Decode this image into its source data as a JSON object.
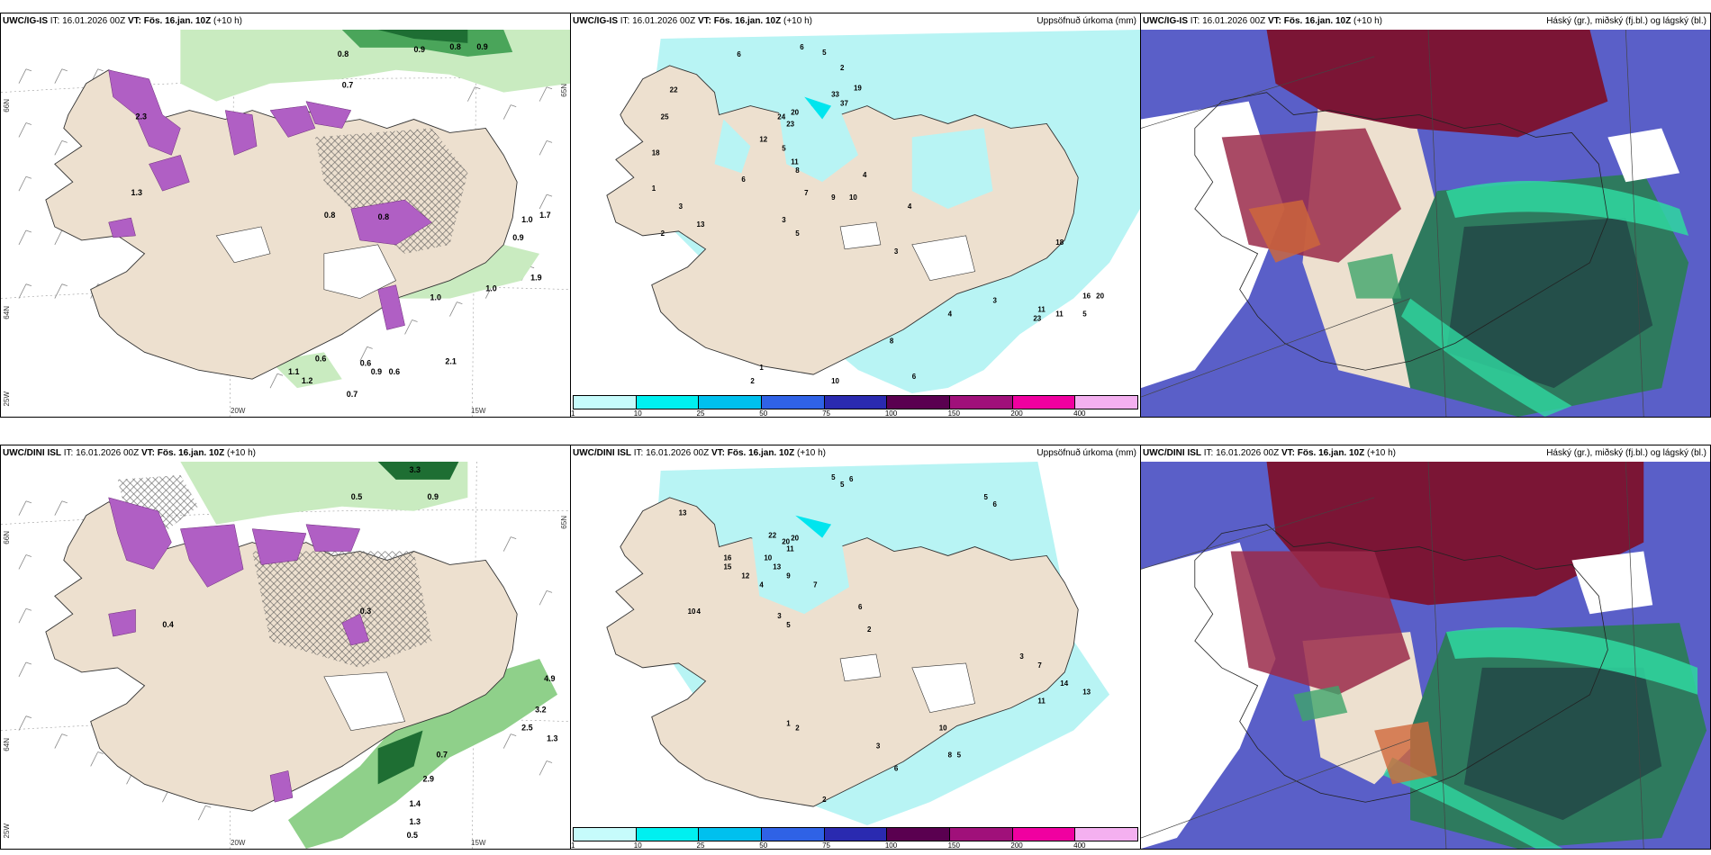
{
  "colors": {
    "land": "#ede0cf",
    "sea": "#ffffff",
    "precip_light": "#b8f4f4",
    "precip_mid": "#00e5ee",
    "snow_purple": "#b05fc4",
    "green_light": "#c9ebc0",
    "green_dark": "#1e6e33",
    "cloud_high": "#7b1535",
    "cloud_mid": "#2e8c6e",
    "cloud_low": "#5a5fc8"
  },
  "rows": [
    {
      "model": "UWC/IG-IS",
      "it_label": "IT: 16.01.2026 00Z",
      "vt_label": "VT: Fös. 16.jan. 10Z",
      "lead": "(+10 h)",
      "accum_title": "Uppsöfnuð úrkoma (mm)",
      "cloud_title": "Háský (gr.), miðský (fj.bl.) og lágský (bl.)"
    },
    {
      "model": "UWC/DINI ISL",
      "it_label": "IT: 16.01.2026 00Z",
      "vt_label": "VT: Fös. 16.jan. 10Z",
      "lead": "(+10 h)",
      "accum_title": "Uppsöfnuð úrkoma (mm)",
      "cloud_title": "Háský (gr.), miðský (fj.bl.) og lágský (bl.)"
    }
  ],
  "colorbar": {
    "ticks": [
      "1",
      "10",
      "25",
      "50",
      "75",
      "100",
      "150",
      "200",
      "400"
    ],
    "colors": [
      "#c6fbfb",
      "#00f0f0",
      "#00c0ee",
      "#2f62e6",
      "#2a2ab0",
      "#5a0050",
      "#a0107a",
      "#f000a0",
      "#f4b0f0"
    ]
  },
  "axis_labels": {
    "lon20": "20W",
    "lon15": "15W",
    "lat66": "66N",
    "lat64": "64N",
    "lon25": "25W",
    "lat65": "65N"
  },
  "precip_labels_top": [
    "0.8",
    "0.7",
    "0.9",
    "0.8",
    "0.9",
    "2.3",
    "1.3",
    "0.8",
    "0.8",
    "1.0",
    "0.9",
    "1.9",
    "1.7",
    "0.6",
    "0.9",
    "0.6",
    "1.1",
    "1.2",
    "0.7",
    "2.1",
    "0.6",
    "1.0",
    "1.0"
  ],
  "accum_numbers_top": [
    "6",
    "6",
    "5",
    "2",
    "22",
    "25",
    "24",
    "23",
    "18",
    "33",
    "37",
    "20",
    "19",
    "12",
    "5",
    "11",
    "8",
    "7",
    "9",
    "10",
    "4",
    "3",
    "5",
    "3",
    "2",
    "6",
    "18",
    "3",
    "4",
    "1",
    "13",
    "16",
    "20",
    "11",
    "23",
    "11",
    "5",
    "8",
    "10",
    "2",
    "1",
    "6",
    "4",
    "3"
  ],
  "precip_labels_bottom": [
    "3.3",
    "0.5",
    "0.9",
    "0.3",
    "0.4",
    "4.9",
    "3.2",
    "2.5",
    "1.3",
    "0.7",
    "2.9",
    "1.4",
    "1.3",
    "0.5"
  ],
  "accum_numbers_bottom": [
    "5",
    "5",
    "6",
    "5",
    "6",
    "22",
    "20",
    "10",
    "13",
    "20",
    "11",
    "12",
    "16",
    "15",
    "13",
    "9",
    "4",
    "7",
    "3",
    "5",
    "6",
    "2",
    "4",
    "10",
    "3",
    "7",
    "14",
    "13",
    "11",
    "10",
    "8",
    "2",
    "1",
    "6",
    "3",
    "5",
    "2"
  ]
}
